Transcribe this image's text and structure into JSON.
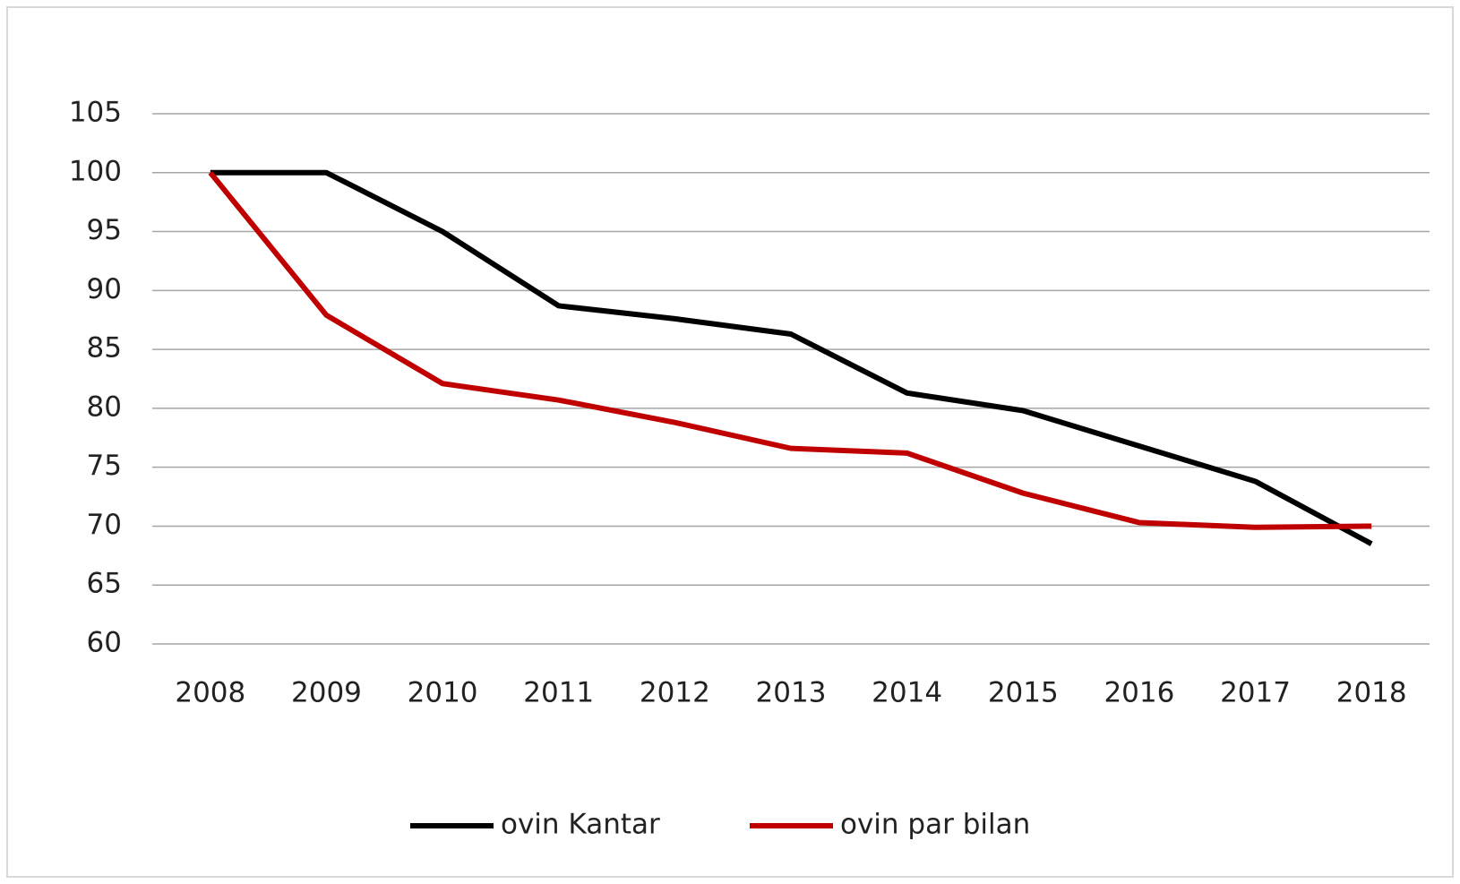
{
  "chart_data": {
    "type": "line",
    "categories": [
      "2008",
      "2009",
      "2010",
      "2011",
      "2012",
      "2013",
      "2014",
      "2015",
      "2016",
      "2017",
      "2018"
    ],
    "series": [
      {
        "name": "ovin Kantar",
        "color": "#000000",
        "values": [
          100,
          100,
          95,
          88.7,
          87.6,
          86.3,
          81.3,
          79.8,
          76.8,
          73.8,
          68.5
        ]
      },
      {
        "name": "ovin par bilan",
        "color": "#c00000",
        "values": [
          100,
          87.9,
          82.1,
          80.7,
          78.8,
          76.6,
          76.2,
          72.8,
          70.3,
          69.9,
          70
        ]
      }
    ],
    "ylim": [
      60,
      105
    ],
    "yticks": [
      60,
      65,
      70,
      75,
      80,
      85,
      90,
      95,
      100,
      105
    ],
    "grid": true,
    "legend": "bottom"
  }
}
